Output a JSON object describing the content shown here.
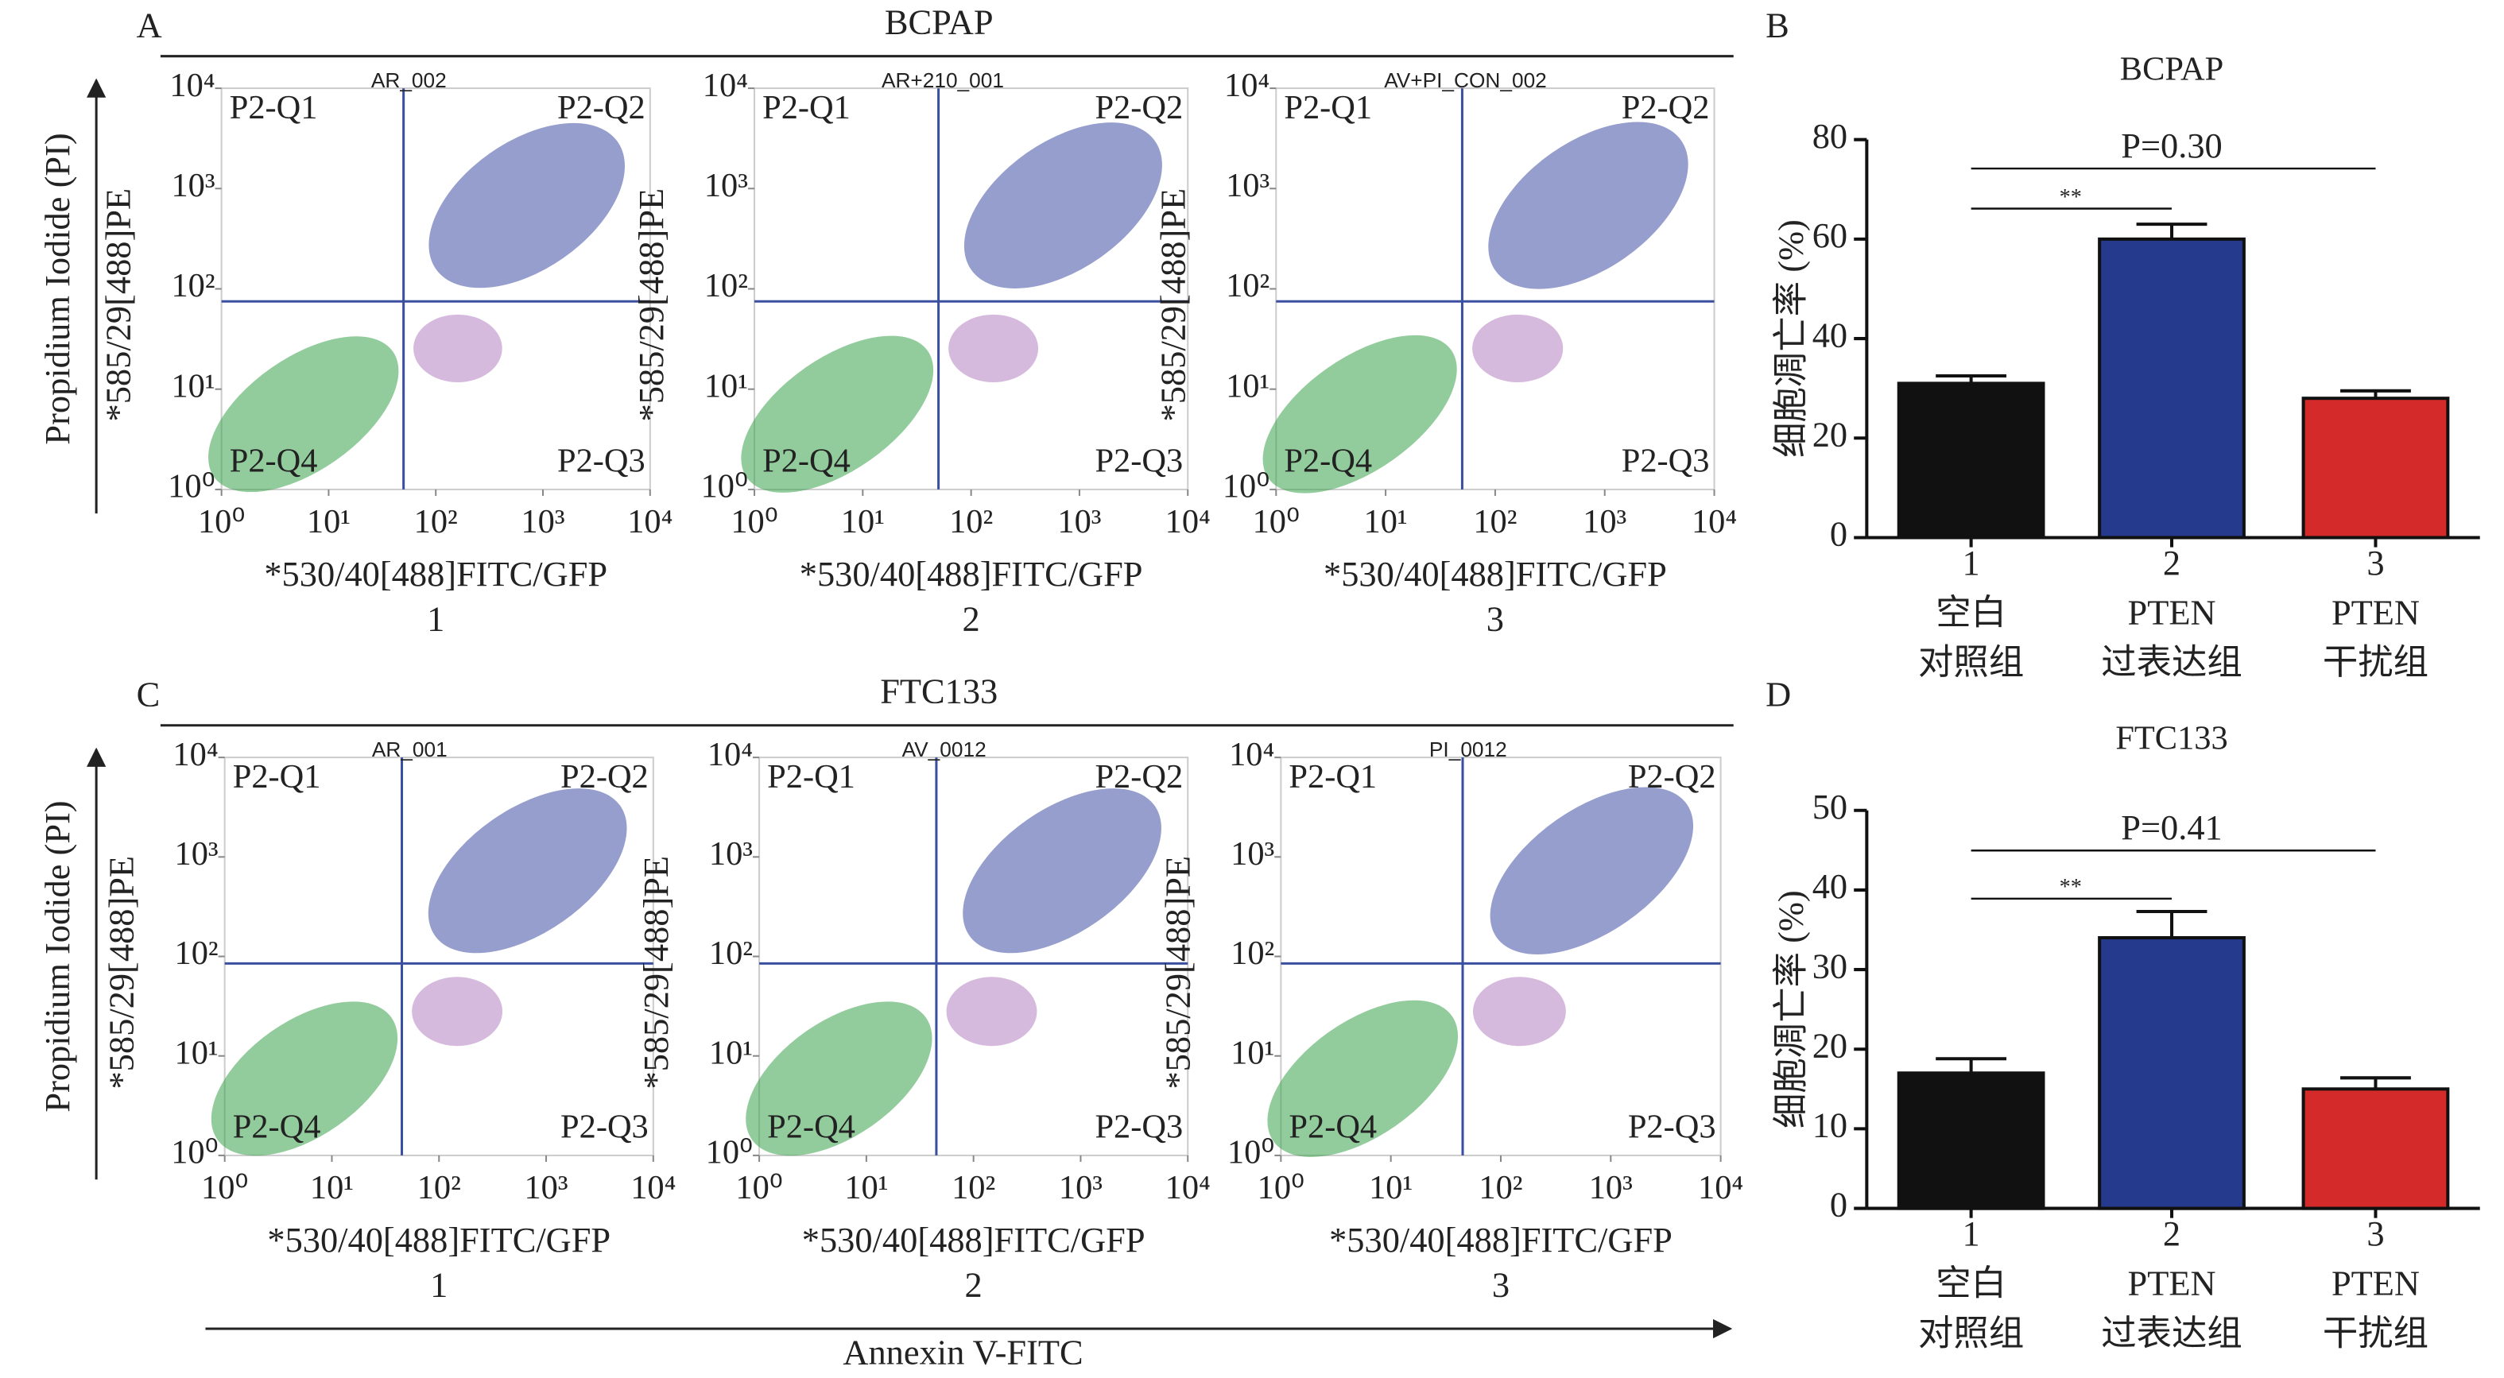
{
  "chart_data": [
    {
      "type": "flow",
      "panel": "A",
      "title": "BCPAP",
      "ylabel": "Propidium Iodide (PI)",
      "log": true,
      "xlim": [
        1,
        10000
      ],
      "ylim": [
        1,
        10000
      ],
      "xticks": [
        {
          "value": 1,
          "label": "10⁰"
        },
        {
          "value": 10,
          "label": "10¹"
        },
        {
          "value": 100,
          "label": "10²"
        },
        {
          "value": 1000,
          "label": "10³"
        },
        {
          "value": 10000,
          "label": "10⁴"
        }
      ],
      "yticks": [
        {
          "value": 1,
          "label": "10⁰"
        },
        {
          "value": 10,
          "label": "10¹"
        },
        {
          "value": 100,
          "label": "10²"
        },
        {
          "value": 1000,
          "label": "10³"
        },
        {
          "value": 10000,
          "label": "10⁴"
        }
      ],
      "gate": {
        "x": 50,
        "y": 75
      },
      "quadrants": [
        "P2-Q1",
        "P2-Q2",
        "P2-Q3",
        "P2-Q4"
      ],
      "plots": [
        {
          "name": "AR_002",
          "xlabel": "*530/40[488]FITC/GFP",
          "ylabel": "*585/29[488]PE",
          "label": "1"
        },
        {
          "name": "AR+210_001",
          "xlabel": "*530/40[488]FITC/GFP",
          "ylabel": "*585/29[488]PE",
          "label": "2"
        },
        {
          "name": "AV+PI_CON_002",
          "xlabel": "*530/40[488]FITC/GFP",
          "ylabel": "*585/29[488]PE",
          "label": "3"
        }
      ]
    },
    {
      "type": "bar",
      "panel": "B",
      "title": "BCPAP",
      "ylabel": "细胞凋亡率 (%)",
      "categories": [
        [
          "1",
          "空白",
          "对照组"
        ],
        [
          "2",
          "PTEN",
          "过表达组"
        ],
        [
          "3",
          "PTEN",
          "干扰组"
        ]
      ],
      "values": [
        31,
        60,
        28
      ],
      "errors": [
        1.5,
        3,
        1.5
      ],
      "colors": [
        "#111111",
        "#253a8c",
        "#d42a2a"
      ],
      "ylim": [
        0,
        80
      ],
      "yticks": [
        0,
        20,
        40,
        60,
        80
      ],
      "annotations": [
        "P=0.30",
        "**"
      ]
    },
    {
      "type": "flow",
      "panel": "C",
      "title": "FTC133",
      "ylabel": "Propidium Iodide (PI)",
      "xlabel": "Annexin V-FITC",
      "log": true,
      "xlim": [
        1,
        10000
      ],
      "ylim": [
        1,
        10000
      ],
      "xticks": [
        {
          "value": 1,
          "label": "10⁰"
        },
        {
          "value": 10,
          "label": "10¹"
        },
        {
          "value": 100,
          "label": "10²"
        },
        {
          "value": 1000,
          "label": "10³"
        },
        {
          "value": 10000,
          "label": "10⁴"
        }
      ],
      "yticks": [
        {
          "value": 1,
          "label": "10⁰"
        },
        {
          "value": 10,
          "label": "10¹"
        },
        {
          "value": 100,
          "label": "10²"
        },
        {
          "value": 1000,
          "label": "10³"
        },
        {
          "value": 10000,
          "label": "10⁴"
        }
      ],
      "gate": {
        "x": 45,
        "y": 85
      },
      "quadrants": [
        "P2-Q1",
        "P2-Q2",
        "P2-Q3",
        "P2-Q4"
      ],
      "plots": [
        {
          "name": "AR_001",
          "xlabel": "*530/40[488]FITC/GFP",
          "ylabel": "*585/29[488]PE",
          "label": "1"
        },
        {
          "name": "AV_0012",
          "xlabel": "*530/40[488]FITC/GFP",
          "ylabel": "*585/29[488]PE",
          "label": "2"
        },
        {
          "name": "PI_0012",
          "xlabel": "*530/40[488]FITC/GFP",
          "ylabel": "*585/29[488]PE",
          "label": "3"
        }
      ]
    },
    {
      "type": "bar",
      "panel": "D",
      "title": "FTC133",
      "ylabel": "细胞凋亡率 (%)",
      "categories": [
        [
          "1",
          "空白",
          "对照组"
        ],
        [
          "2",
          "PTEN",
          "过表达组"
        ],
        [
          "3",
          "PTEN",
          "干扰组"
        ]
      ],
      "values": [
        17,
        34,
        15
      ],
      "errors": [
        1.8,
        3.3,
        1.4
      ],
      "colors": [
        "#111111",
        "#253a8c",
        "#d42a2a"
      ],
      "ylim": [
        0,
        50
      ],
      "yticks": [
        0,
        10,
        20,
        30,
        40,
        50
      ],
      "annotations": [
        "P=0.41",
        "**"
      ]
    }
  ]
}
